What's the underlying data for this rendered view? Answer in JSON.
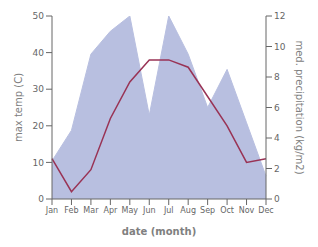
{
  "chart_data": {
    "type": "line",
    "categories": [
      "Jan",
      "Feb",
      "Mar",
      "Apr",
      "May",
      "Jun",
      "Jul",
      "Aug",
      "Sep",
      "Oct",
      "Nov",
      "Dec"
    ],
    "series": [
      {
        "type": "area",
        "color": "#b8bfe0",
        "axis": "y2",
        "values": [
          2.5,
          4.5,
          9.5,
          11.0,
          12.0,
          5.5,
          12.0,
          9.5,
          6.0,
          8.5,
          5.0,
          1.5
        ]
      },
      {
        "type": "line",
        "color": "#993355",
        "values": [
          11,
          2,
          8,
          22,
          32,
          38,
          38,
          36,
          28,
          20,
          10,
          11
        ]
      }
    ],
    "xlabel": "date (month)",
    "ylabel": "max temp (C)",
    "y2label": "med. precipitation (kg/m2)",
    "ylim": [
      0,
      50
    ],
    "yticks": [
      0,
      10,
      20,
      30,
      40,
      50
    ],
    "y2lim": [
      0,
      12
    ],
    "y2ticks": [
      0,
      2,
      4,
      6,
      8,
      10,
      12
    ],
    "grid": false
  }
}
